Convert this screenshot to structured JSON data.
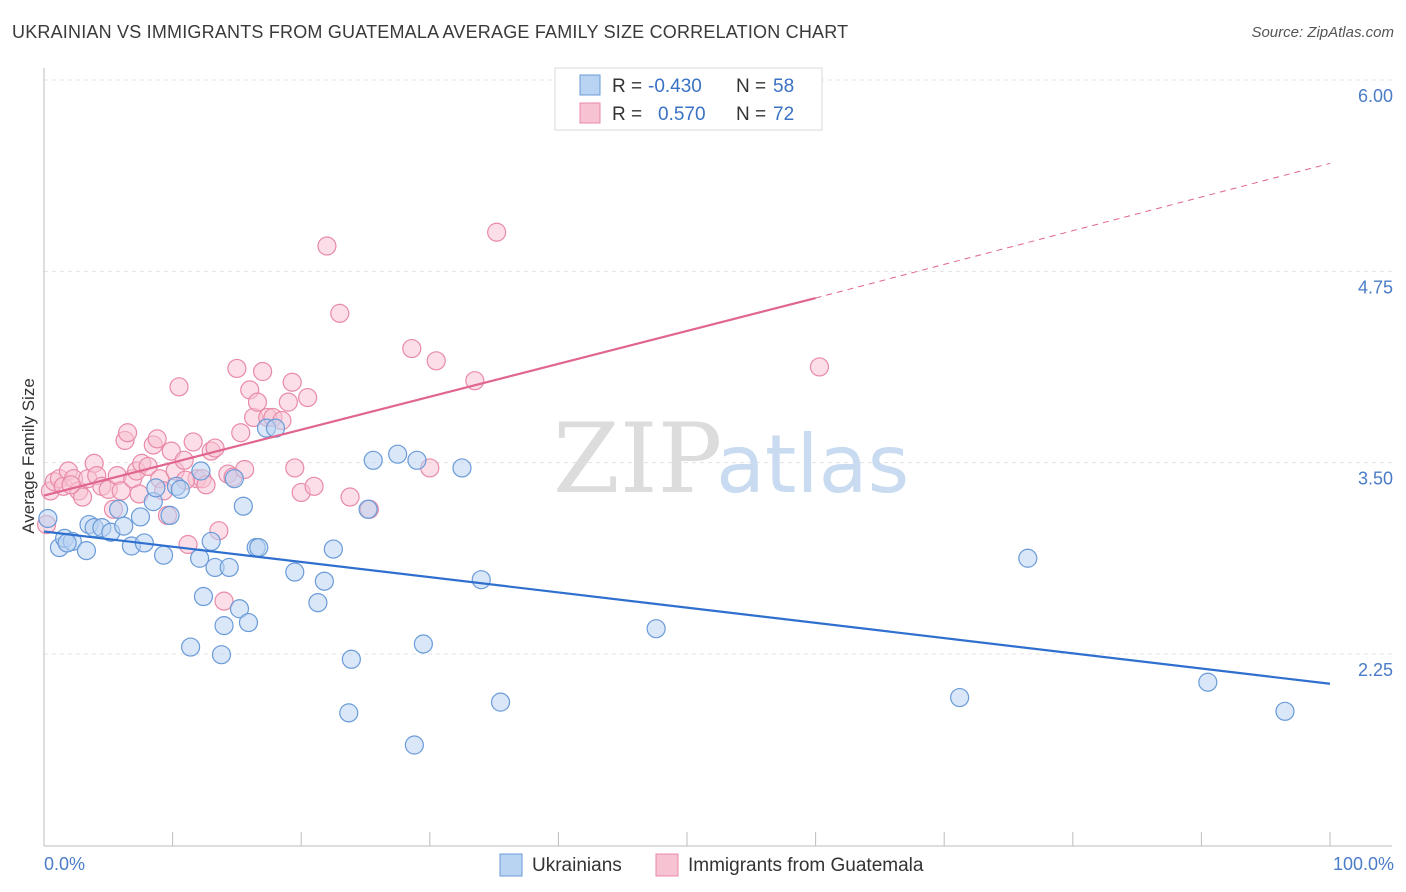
{
  "header": {
    "title": "UKRAINIAN VS IMMIGRANTS FROM GUATEMALA AVERAGE FAMILY SIZE CORRELATION CHART",
    "source": "Source: ZipAtlas.com"
  },
  "watermark": {
    "zip": "ZIP",
    "atlas": "atlas"
  },
  "legend_top": [
    {
      "r_label": "R =",
      "r_value": "-0.430",
      "n_label": "N =",
      "n_value": "58"
    },
    {
      "r_label": "R =",
      "r_value": "0.570",
      "n_label": "N =",
      "n_value": "72"
    }
  ],
  "colors": {
    "blue_fill": "#b9d3f2",
    "blue_stroke": "#6a9bd8",
    "blue_line": "#2f6fce",
    "pink_fill": "#f7c3d3",
    "pink_stroke": "#e98aa8",
    "pink_line": "#e0658f",
    "grid": "#e3e3e3"
  },
  "chart_data": {
    "type": "scatter",
    "title": "UKRAINIAN VS IMMIGRANTS FROM GUATEMALA AVERAGE FAMILY SIZE CORRELATION CHART",
    "xlabel": "",
    "ylabel": "Average Family Size",
    "xlim": [
      0,
      100
    ],
    "ylim": [
      1.25,
      6.25
    ],
    "yticks": [
      2.25,
      3.5,
      4.75,
      6.0
    ],
    "ytick_labels": [
      "2.25",
      "3.50",
      "4.75",
      "6.00"
    ],
    "xtick_labels": [
      "0.0%",
      "100.0%"
    ],
    "legend_position": "bottom-center",
    "grid": true,
    "series": [
      {
        "name": "Ukrainians",
        "color": "#6a9bd8",
        "points": [
          [
            0.3,
            3.24
          ],
          [
            1.2,
            3.05
          ],
          [
            1.6,
            3.11
          ],
          [
            2.2,
            3.09
          ],
          [
            3.3,
            3.03
          ],
          [
            3.5,
            3.2
          ],
          [
            3.9,
            3.18
          ],
          [
            4.5,
            3.18
          ],
          [
            5.2,
            3.15
          ],
          [
            5.8,
            3.3
          ],
          [
            6.2,
            3.19
          ],
          [
            6.8,
            3.06
          ],
          [
            7.5,
            3.25
          ],
          [
            7.8,
            3.08
          ],
          [
            8.5,
            3.35
          ],
          [
            8.7,
            3.44
          ],
          [
            9.3,
            3.0
          ],
          [
            9.8,
            3.26
          ],
          [
            10.3,
            3.45
          ],
          [
            10.6,
            3.43
          ],
          [
            11.4,
            2.4
          ],
          [
            12.1,
            2.98
          ],
          [
            12.4,
            2.73
          ],
          [
            13.0,
            3.09
          ],
          [
            13.3,
            2.92
          ],
          [
            13.8,
            2.35
          ],
          [
            14.0,
            2.54
          ],
          [
            14.4,
            2.92
          ],
          [
            15.2,
            2.65
          ],
          [
            15.5,
            3.32
          ],
          [
            15.9,
            2.56
          ],
          [
            16.5,
            3.05
          ],
          [
            16.7,
            3.05
          ],
          [
            17.3,
            3.83
          ],
          [
            18.0,
            3.83
          ],
          [
            19.5,
            2.89
          ],
          [
            21.3,
            2.69
          ],
          [
            21.8,
            2.83
          ],
          [
            22.5,
            3.04
          ],
          [
            23.7,
            1.97
          ],
          [
            23.9,
            2.32
          ],
          [
            25.2,
            3.3
          ],
          [
            25.6,
            3.62
          ],
          [
            27.5,
            3.66
          ],
          [
            28.8,
            1.76
          ],
          [
            29.0,
            3.62
          ],
          [
            29.5,
            2.42
          ],
          [
            32.5,
            3.57
          ],
          [
            34.0,
            2.84
          ],
          [
            35.5,
            2.04
          ],
          [
            47.6,
            2.52
          ],
          [
            71.2,
            2.07
          ],
          [
            76.5,
            2.98
          ],
          [
            90.5,
            2.17
          ],
          [
            96.5,
            1.98
          ],
          [
            1.8,
            3.08
          ],
          [
            12.2,
            3.55
          ],
          [
            14.8,
            3.5
          ]
        ]
      },
      {
        "name": "Immigrants from Guatemala",
        "color": "#e98aa8",
        "points": [
          [
            0.2,
            3.2
          ],
          [
            0.5,
            3.42
          ],
          [
            0.8,
            3.48
          ],
          [
            1.2,
            3.5
          ],
          [
            1.5,
            3.45
          ],
          [
            1.9,
            3.55
          ],
          [
            2.3,
            3.5
          ],
          [
            2.7,
            3.42
          ],
          [
            3.0,
            3.38
          ],
          [
            3.4,
            3.5
          ],
          [
            3.9,
            3.6
          ],
          [
            4.1,
            3.52
          ],
          [
            4.5,
            3.45
          ],
          [
            5.0,
            3.43
          ],
          [
            5.4,
            3.3
          ],
          [
            5.7,
            3.52
          ],
          [
            6.0,
            3.42
          ],
          [
            6.3,
            3.75
          ],
          [
            6.5,
            3.8
          ],
          [
            6.9,
            3.5
          ],
          [
            7.2,
            3.55
          ],
          [
            7.6,
            3.6
          ],
          [
            8.1,
            3.58
          ],
          [
            8.5,
            3.72
          ],
          [
            8.8,
            3.76
          ],
          [
            9.0,
            3.5
          ],
          [
            9.3,
            3.42
          ],
          [
            9.6,
            3.26
          ],
          [
            9.9,
            3.68
          ],
          [
            10.2,
            3.55
          ],
          [
            10.5,
            4.1
          ],
          [
            10.9,
            3.62
          ],
          [
            11.2,
            3.07
          ],
          [
            11.6,
            3.74
          ],
          [
            11.9,
            3.5
          ],
          [
            12.3,
            3.5
          ],
          [
            12.6,
            3.46
          ],
          [
            13.0,
            3.68
          ],
          [
            13.3,
            3.7
          ],
          [
            13.6,
            3.16
          ],
          [
            14.0,
            2.7
          ],
          [
            14.3,
            3.53
          ],
          [
            14.7,
            3.51
          ],
          [
            15.0,
            4.22
          ],
          [
            15.3,
            3.8
          ],
          [
            15.6,
            3.56
          ],
          [
            16.0,
            4.08
          ],
          [
            16.3,
            3.9
          ],
          [
            16.6,
            4.0
          ],
          [
            17.0,
            4.2
          ],
          [
            17.4,
            3.9
          ],
          [
            17.8,
            3.9
          ],
          [
            18.5,
            3.88
          ],
          [
            19.0,
            4.0
          ],
          [
            19.3,
            4.13
          ],
          [
            19.5,
            3.57
          ],
          [
            20.0,
            3.41
          ],
          [
            20.5,
            4.03
          ],
          [
            21.0,
            3.45
          ],
          [
            22.0,
            5.02
          ],
          [
            23.0,
            4.58
          ],
          [
            23.8,
            3.38
          ],
          [
            25.3,
            3.3
          ],
          [
            28.6,
            4.35
          ],
          [
            30.0,
            3.57
          ],
          [
            30.5,
            4.27
          ],
          [
            33.5,
            4.14
          ],
          [
            35.2,
            5.11
          ],
          [
            60.3,
            4.23
          ],
          [
            7.4,
            3.4
          ],
          [
            2.1,
            3.46
          ],
          [
            11.0,
            3.49
          ]
        ]
      }
    ],
    "trendlines": [
      {
        "series": "Ukrainians",
        "x": [
          0,
          100
        ],
        "y": [
          3.155,
          2.16
        ]
      },
      {
        "series": "Immigrants from Guatemala",
        "x": [
          0,
          60
        ],
        "y": [
          3.39,
          4.68
        ],
        "dashed_x": [
          60,
          100
        ],
        "dashed_y": [
          4.68,
          5.56
        ]
      }
    ]
  }
}
